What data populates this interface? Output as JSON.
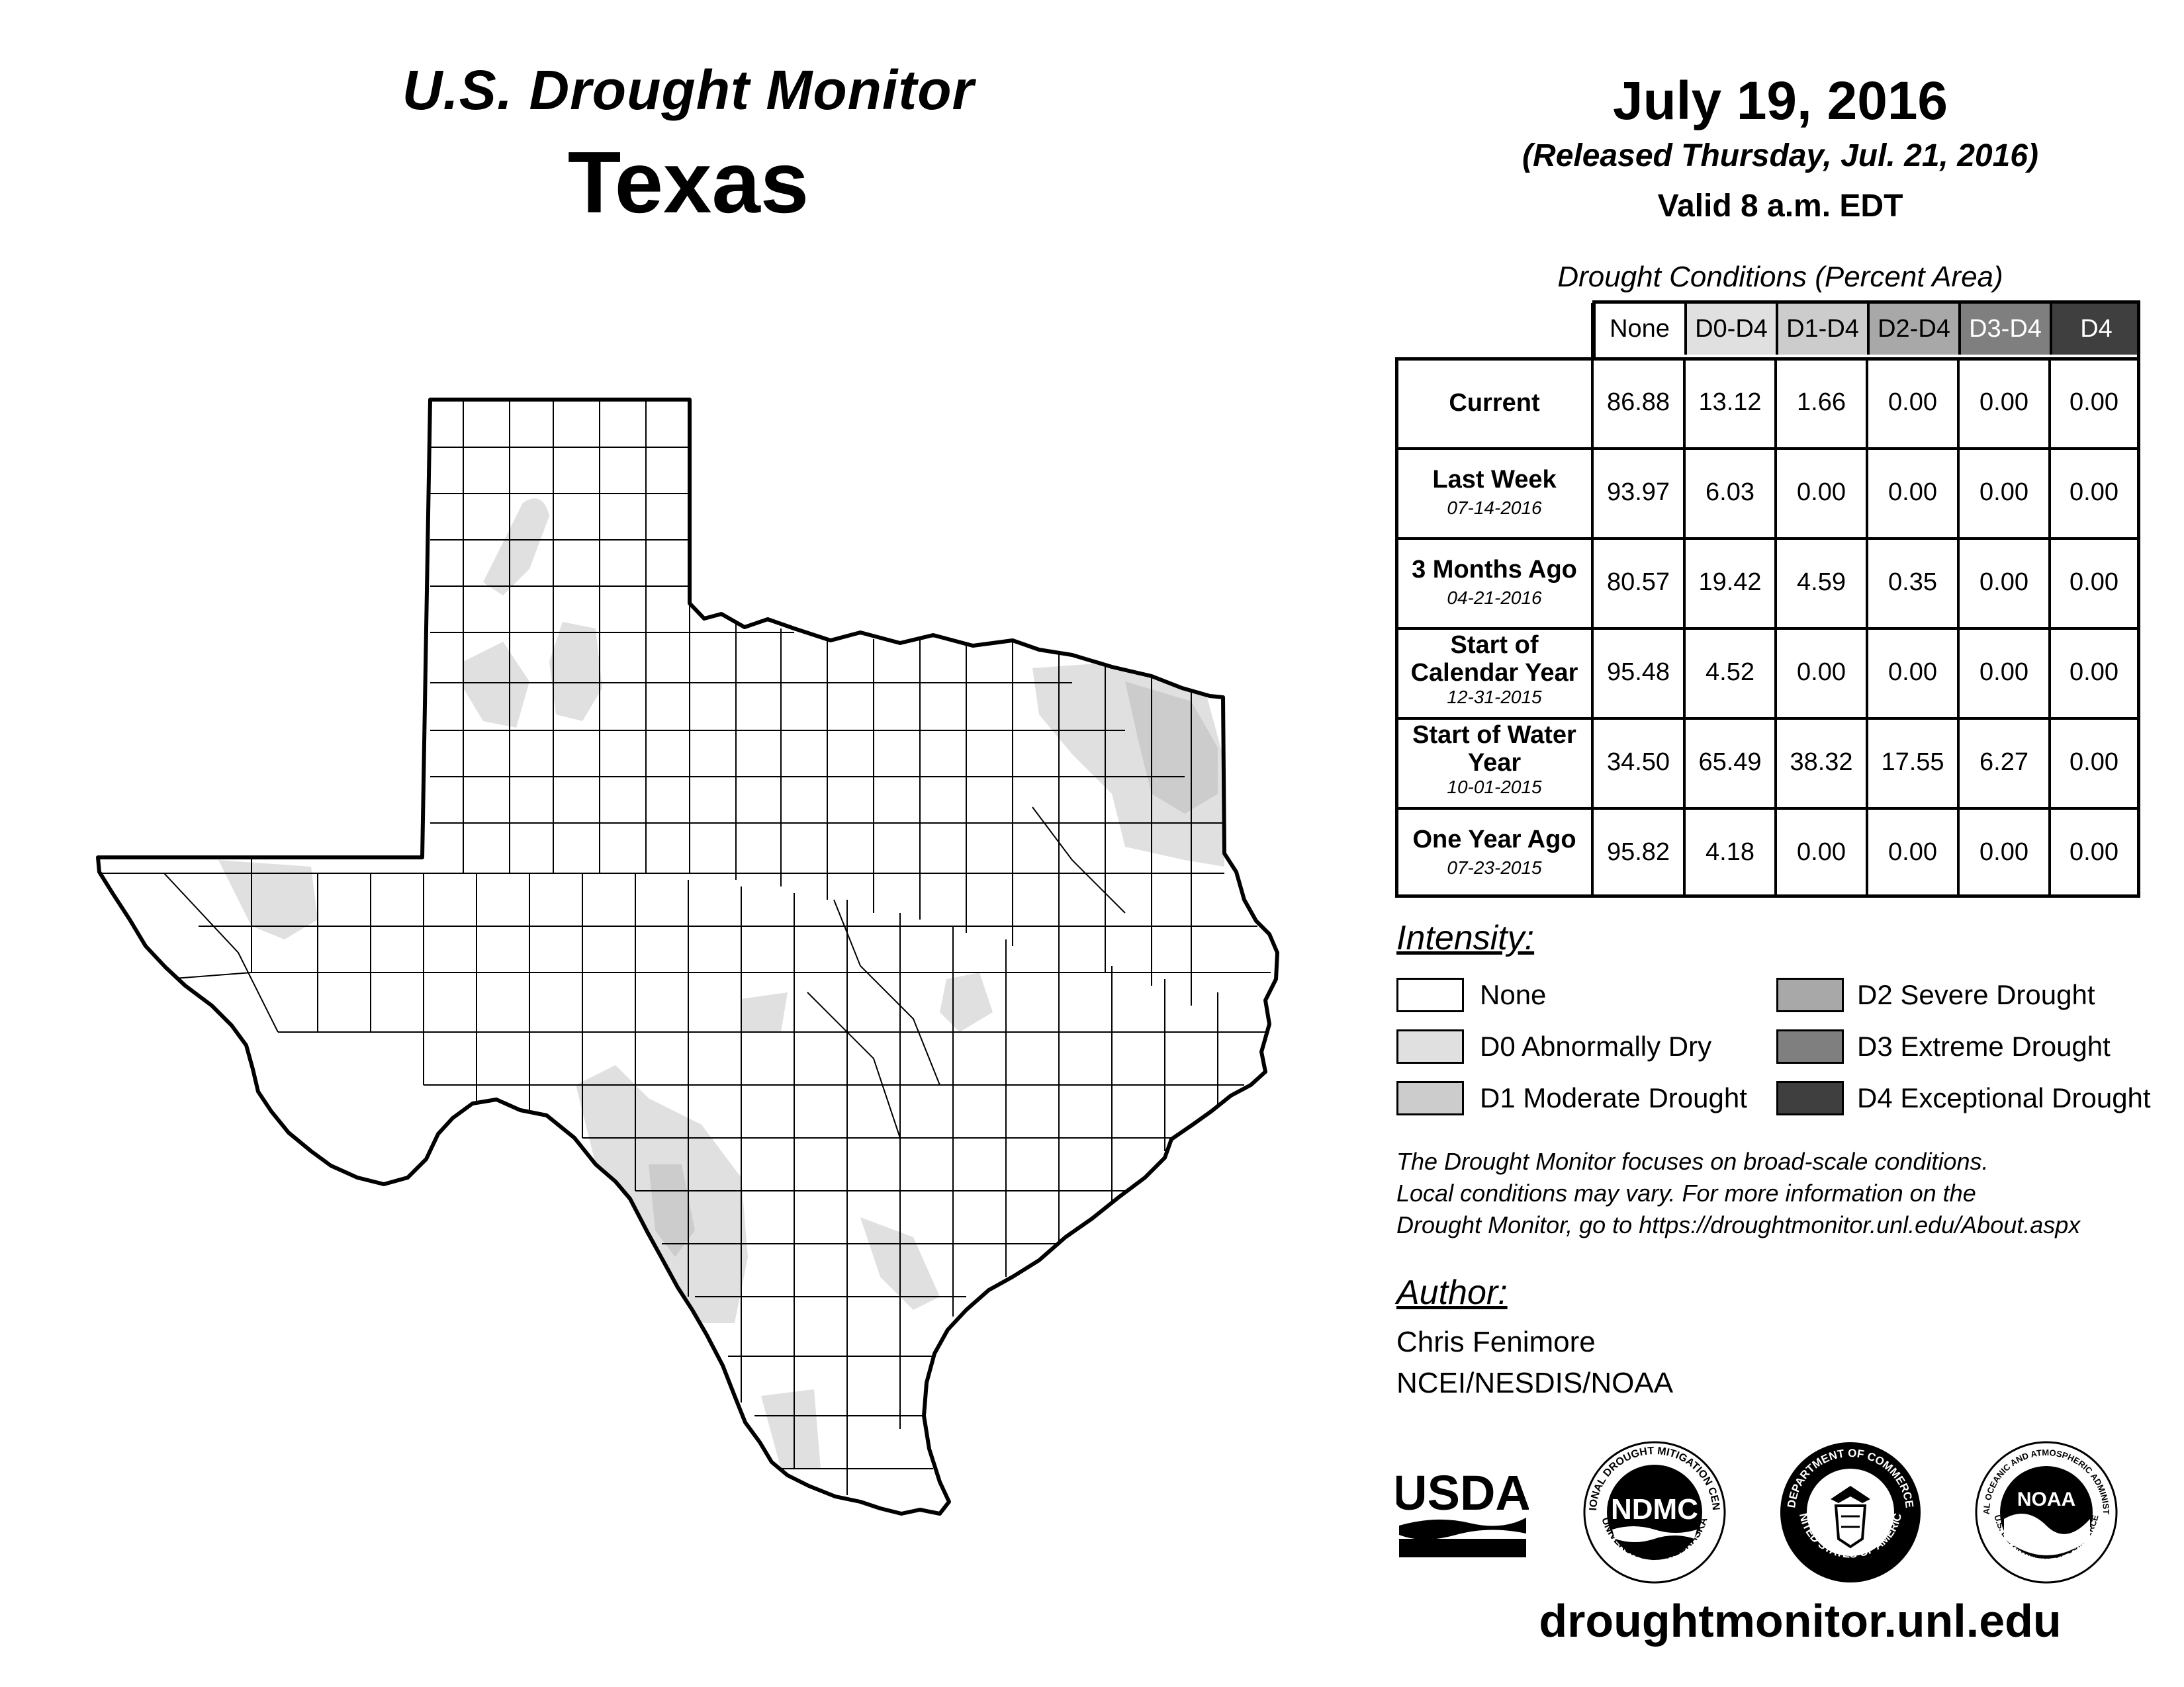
{
  "header": {
    "title": "U.S. Drought Monitor",
    "state": "Texas"
  },
  "map_info": {
    "date": "July 19, 2016",
    "released": "(Released Thursday, Jul. 21, 2016)",
    "valid": "Valid 8 a.m. EDT"
  },
  "conditions": {
    "caption": "Drought Conditions (Percent Area)",
    "columns": [
      "None",
      "D0-D4",
      "D1-D4",
      "D2-D4",
      "D3-D4",
      "D4"
    ],
    "rows": [
      {
        "label": "Current",
        "date": "",
        "values": [
          "86.88",
          "13.12",
          "1.66",
          "0.00",
          "0.00",
          "0.00"
        ]
      },
      {
        "label": "Last Week",
        "date": "07-14-2016",
        "values": [
          "93.97",
          "6.03",
          "0.00",
          "0.00",
          "0.00",
          "0.00"
        ]
      },
      {
        "label": "3 Months Ago",
        "date": "04-21-2016",
        "values": [
          "80.57",
          "19.42",
          "4.59",
          "0.35",
          "0.00",
          "0.00"
        ]
      },
      {
        "label": "Start of Calendar Year",
        "date": "12-31-2015",
        "values": [
          "95.48",
          "4.52",
          "0.00",
          "0.00",
          "0.00",
          "0.00"
        ]
      },
      {
        "label": "Start of Water Year",
        "date": "10-01-2015",
        "values": [
          "34.50",
          "65.49",
          "38.32",
          "17.55",
          "6.27",
          "0.00"
        ]
      },
      {
        "label": "One Year Ago",
        "date": "07-23-2015",
        "values": [
          "95.82",
          "4.18",
          "0.00",
          "0.00",
          "0.00",
          "0.00"
        ]
      }
    ],
    "header_colors": [
      "#ffffff",
      "#e0e0e0",
      "#cccccc",
      "#a8a8a8",
      "#7f7f7f",
      "#3f3f3f"
    ]
  },
  "legend": {
    "title": "Intensity:",
    "items": [
      {
        "label": "None",
        "color": "#ffffff"
      },
      {
        "label": "D0 Abnormally Dry",
        "color": "#e0e0e0"
      },
      {
        "label": "D1 Moderate Drought",
        "color": "#cccccc"
      },
      {
        "label": "D2 Severe Drought",
        "color": "#a8a8a8"
      },
      {
        "label": "D3 Extreme Drought",
        "color": "#7f7f7f"
      },
      {
        "label": "D4 Exceptional Drought",
        "color": "#3f3f3f"
      }
    ]
  },
  "note": {
    "lines": [
      "The Drought Monitor focuses on broad-scale conditions.",
      "Local conditions may vary. For more information on the",
      "Drought Monitor, go to https://droughtmonitor.unl.edu/About.aspx"
    ]
  },
  "author": {
    "title": "Author:",
    "name": "Chris Fenimore",
    "org": "NCEI/NESDIS/NOAA"
  },
  "logos": {
    "usda": "USDA",
    "ndmc": "NDMC",
    "ndmc_ring_top": "NATIONAL DROUGHT MITIGATION CENTER",
    "ndmc_ring_bottom": "UNIVERSITY OF NEBRASKA",
    "doc_ring_top": "DEPARTMENT OF COMMERCE",
    "doc_ring_bottom": "UNITED STATES OF AMERICA",
    "noaa": "NOAA",
    "noaa_ring_top": "NATIONAL OCEANIC AND ATMOSPHERIC ADMINISTRATION",
    "noaa_ring_bottom": "U.S. DEPARTMENT OF COMMERCE"
  },
  "footer": {
    "url": "droughtmonitor.unl.edu"
  }
}
